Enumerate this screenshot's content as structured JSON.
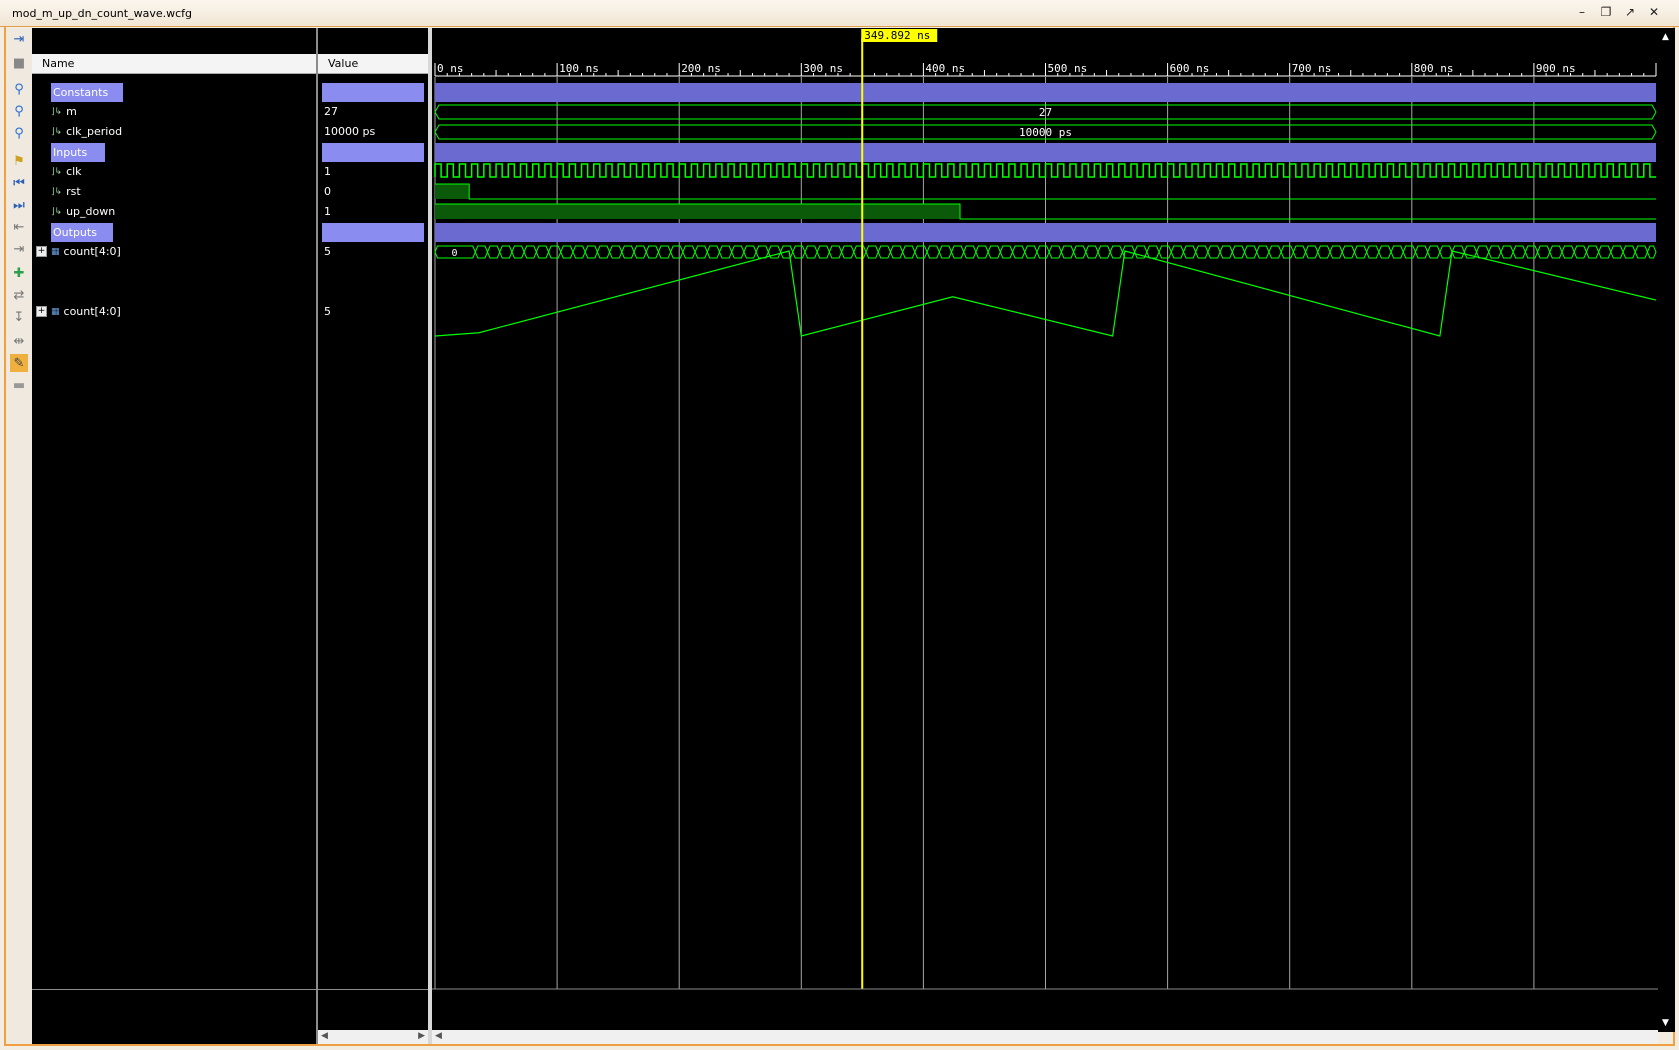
{
  "window": {
    "title": "mod_m_up_dn_count_wave.wcfg"
  },
  "columns": {
    "name": "Name",
    "value": "Value"
  },
  "groups": [
    {
      "label": "Constants"
    },
    {
      "label": "Inputs"
    },
    {
      "label": "Outputs"
    }
  ],
  "signals": {
    "m": {
      "name": "m",
      "value": "27"
    },
    "clk_period": {
      "name": "clk_period",
      "value": "10000 ps"
    },
    "clk": {
      "name": "clk",
      "value": "1"
    },
    "rst": {
      "name": "rst",
      "value": "0"
    },
    "up_down": {
      "name": "up_down",
      "value": "1"
    },
    "count_digital": {
      "name": "count[4:0]",
      "value": "5"
    },
    "count_analog": {
      "name": "count[4:0]",
      "value": "5"
    }
  },
  "wave": {
    "cursor_label": "349.892 ns",
    "cursor_time_ns": 349.892,
    "time_range_ns": [
      0,
      1000
    ],
    "ticks": [
      "0 ns",
      "100 ns",
      "200 ns",
      "300 ns",
      "400 ns",
      "500 ns",
      "600 ns",
      "700 ns",
      "800 ns",
      "900 ns"
    ],
    "bus_m_label": "27",
    "bus_clk_period_label": "10000 ps",
    "count_initial_label": "0",
    "clk_period_ns": 10,
    "rst_high_until_ns": 28,
    "up_down_high_until_ns": 430,
    "colors": {
      "wave": "#00ff00",
      "group": "#6a6ad0",
      "cursor": "#ffff00",
      "grid": "#cfcfcf",
      "ruler": "#ffffff"
    }
  },
  "toolbar_icons": [
    "zoom-in-icon",
    "zoom-out-icon",
    "zoom-fit-icon",
    "add-marker-icon",
    "go-start-icon",
    "go-end-icon",
    "prev-transition-icon",
    "next-transition-icon",
    "add-signal-icon",
    "swap-cursor-icon",
    "snap-icon",
    "highlight-icon",
    "divider-icon"
  ]
}
